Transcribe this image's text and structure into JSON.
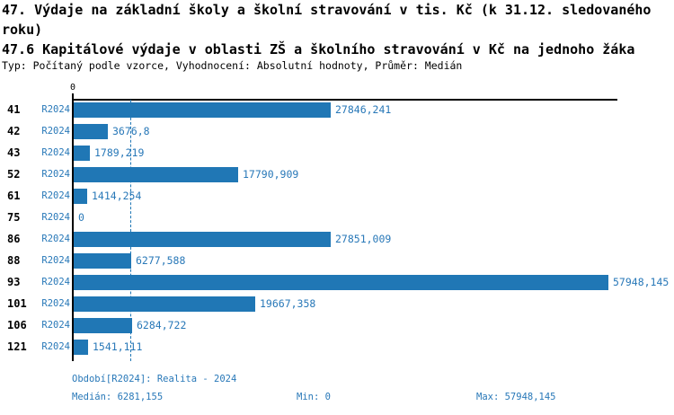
{
  "header": {
    "title_line1": "47. Výdaje na základní školy a školní stravování v tis. Kč (k 31.12. sledovaného",
    "title_line2": "roku)",
    "subtitle": "47.6 Kapitálové výdaje v oblasti ZŠ a školního stravování v Kč na jednoho žáka",
    "meta": "Typ: Počítaný podle vzorce, Vyhodnocení: Absolutní hodnoty, Průměr: Medián"
  },
  "chart_data": {
    "type": "bar",
    "orientation": "horizontal",
    "title": "47.6 Kapitálové výdaje v oblasti ZŠ a školního stravování v Kč na jednoho žáka",
    "categories": [
      "41",
      "42",
      "43",
      "52",
      "61",
      "75",
      "86",
      "88",
      "93",
      "101",
      "106",
      "121"
    ],
    "series": [
      {
        "name": "R2024",
        "values": [
          27846.241,
          3676.8,
          1789.219,
          17790.909,
          1414.254,
          0,
          27851.009,
          6277.588,
          57948.145,
          19667.358,
          6284.722,
          1541.111
        ]
      }
    ],
    "value_labels": [
      "27846,241",
      "3676,8",
      "1789,219",
      "17790,909",
      "1414,254",
      "0",
      "27851,009",
      "6277,588",
      "57948,145",
      "19667,358",
      "6284,722",
      "1541,111"
    ],
    "xlim": [
      0,
      57948.145
    ],
    "x_tick_labels": [
      "0"
    ],
    "median_line": {
      "value": 6281.155,
      "style": "dashed",
      "color": "#2077b5"
    },
    "bar_color": "#2077b5",
    "grid": false,
    "legend_position": "none"
  },
  "footer": {
    "period": "Období[R2024]: Realita - 2024",
    "median_label": "Medián: 6281,155",
    "min_label": "Min: 0",
    "max_label": "Max: 57948,145"
  }
}
